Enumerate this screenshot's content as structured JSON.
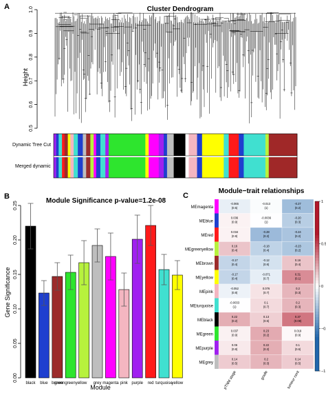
{
  "panels": {
    "a": "A",
    "b": "B",
    "c": "C"
  },
  "chart_data": [
    {
      "type": "dendrogram",
      "title": "Cluster Dendrogram",
      "ylabel": "Height",
      "ylim": [
        0.5,
        1.0
      ],
      "yticks": [
        "0.5",
        "0.6",
        "0.7",
        "0.8",
        "0.9",
        "1.0"
      ],
      "color_rows": [
        "Dynamic Tree Cut",
        "Merged dynamic"
      ]
    },
    {
      "type": "bar",
      "title": "Module Significance p-value=1.2e-08",
      "xlabel": "Module",
      "ylabel": "Gene Significance",
      "ylim": [
        0,
        0.25
      ],
      "yticks": [
        "0.00",
        "0.05",
        "0.10",
        "0.15",
        "0.20",
        "0.25"
      ],
      "categories": [
        "black",
        "blue",
        "brown",
        "greenyellow",
        "green",
        "grey",
        "magenta",
        "pink",
        "purple",
        "red",
        "turquoise",
        "yellow"
      ],
      "category_labels": [
        "black",
        "blue",
        "brown",
        "greengreenyellow",
        "",
        "grey",
        "magenta",
        "pink",
        "purple",
        "red",
        "turquoise",
        "yellow"
      ],
      "values": [
        0.22,
        0.123,
        0.147,
        0.153,
        0.167,
        0.192,
        0.176,
        0.128,
        0.201,
        0.221,
        0.157,
        0.149
      ],
      "errors": [
        0.033,
        0.018,
        0.02,
        0.025,
        0.032,
        0.024,
        0.034,
        0.024,
        0.035,
        0.029,
        0.022,
        0.021
      ],
      "colors": [
        "#000000",
        "#1f3fcf",
        "#9c2b2b",
        "#2ee52e",
        "#b7f23d",
        "#bebebe",
        "#ff00ff",
        "#f4b6c1",
        "#a020f0",
        "#ff1a1a",
        "#40e0d0",
        "#ffff00"
      ]
    },
    {
      "type": "heatmap",
      "title": "Module−trait relationships",
      "rows": [
        "MEmagenta",
        "MEblue",
        "MEred",
        "MEgreenyellow",
        "MEbrown",
        "MEyellow",
        "MEpink",
        "MEturquoise",
        "MEblack",
        "MEgreen",
        "MEpurple",
        "MEgrey"
      ],
      "row_colors": [
        "#ff00ff",
        "#1f3fcf",
        "#ff1a1a",
        "#b7f23d",
        "#9c2b2b",
        "#ffff00",
        "#f4b6c1",
        "#40e0d0",
        "#000000",
        "#2ee52e",
        "#a020f0",
        "#bebebe"
      ],
      "columns": [
        "pTNM stage",
        "grade",
        "tumour cont"
      ],
      "corr": [
        [
          -0.065,
          -0.013,
          -0.27
        ],
        [
          0.036,
          -0.0036,
          -0.2
        ],
        [
          0.034,
          -0.28,
          -0.24
        ],
        [
          0.16,
          -0.18,
          -0.23
        ],
        [
          -0.17,
          -0.12,
          0.16
        ],
        [
          -0.17,
          -0.071,
          0.31
        ],
        [
          -0.052,
          0.076,
          0.2
        ],
        [
          -0.0033,
          0.1,
          0.2
        ],
        [
          0.22,
          0.13,
          0.37
        ],
        [
          0.037,
          0.23,
          0.019
        ],
        [
          0.06,
          0.22,
          0.1
        ],
        [
          0.14,
          0.2,
          0.14
        ]
      ],
      "cell_text": [
        [
          [
            "-0.065",
            "(0.5)"
          ],
          [
            "-0.013",
            "(1)"
          ],
          [
            "-0.27",
            "(0.2)"
          ]
        ],
        [
          [
            "0.036",
            "(0.9)"
          ],
          [
            "-0.0036",
            "(1)"
          ],
          [
            "-0.20",
            "(0.3)"
          ]
        ],
        [
          [
            "0.034",
            "(0.9)"
          ],
          [
            "-0.28",
            "(0.2)"
          ],
          [
            "-0.24",
            "(0.2)"
          ]
        ],
        [
          [
            "0.16",
            "(0.4)"
          ],
          [
            "-0.18",
            "(0.4)"
          ],
          [
            "-0.23",
            "(0.2)"
          ]
        ],
        [
          [
            "-0.17",
            "(0.4)"
          ],
          [
            "-0.12",
            "(0.6)"
          ],
          [
            "0.16",
            "(0.4)"
          ]
        ],
        [
          [
            "-0.17",
            "(0.4)"
          ],
          [
            "-0.071",
            "(0.7)"
          ],
          [
            "0.31",
            "(0.1)"
          ]
        ],
        [
          [
            "-0.052",
            "(0.8)"
          ],
          [
            "0.076",
            "(0.7)"
          ],
          [
            "0.2",
            "(0.3)"
          ]
        ],
        [
          [
            "-0.0033",
            "(1)"
          ],
          [
            "0.1",
            "(0.7)"
          ],
          [
            "0.2",
            "(0.3)"
          ]
        ],
        [
          [
            "0.22",
            "(0.2)"
          ],
          [
            "0.13",
            "(0.5)"
          ],
          [
            "0.37",
            "(0.08)"
          ]
        ],
        [
          [
            "0.037",
            "(0.9)"
          ],
          [
            "0.23",
            "(0.2)"
          ],
          [
            "0.019",
            "(0.9)"
          ]
        ],
        [
          [
            "0.06",
            "(0.8)"
          ],
          [
            "0.22",
            "(0.2)"
          ],
          [
            "0.1",
            "(0.6)"
          ]
        ],
        [
          [
            "0.14",
            "(0.5)"
          ],
          [
            "0.2",
            "(0.3)"
          ],
          [
            "0.14",
            "(0.5)"
          ]
        ]
      ],
      "scale": {
        "min": -1,
        "max": 1,
        "ticks": [
          "1",
          "0.5",
          "0",
          "−0.5",
          "−1"
        ]
      }
    }
  ]
}
